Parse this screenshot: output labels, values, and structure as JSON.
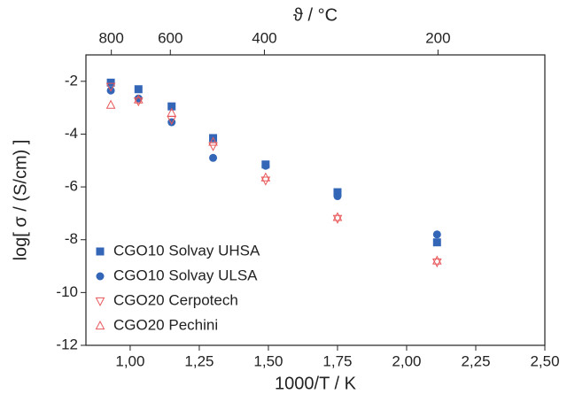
{
  "chart_data": {
    "type": "scatter",
    "xlabel": "1000/T / K",
    "ylabel": "log[ σ / (S/cm) ]",
    "x2label": "ϑ / °C",
    "x": [
      0.93,
      1.03,
      1.15,
      1.3,
      1.49,
      1.75,
      2.11
    ],
    "series": [
      {
        "name": "CGO10 Solvay UHSA",
        "color": "#3466b8",
        "marker": "square",
        "values": [
          -2.05,
          -2.3,
          -2.95,
          -4.15,
          -5.15,
          -6.2,
          -8.1
        ]
      },
      {
        "name": "CGO10 Solvay ULSA",
        "color": "#3466b8",
        "marker": "circle",
        "values": [
          -2.35,
          -2.65,
          -3.55,
          -4.9,
          -5.2,
          -6.35,
          -7.8
        ]
      },
      {
        "name": "CGO20 Cerpotech",
        "color": "#e8575a",
        "marker": "triangle-down",
        "values": [
          -2.2,
          -2.75,
          -3.45,
          -4.45,
          -5.75,
          -7.2,
          -8.85
        ]
      },
      {
        "name": "CGO20 Pechini",
        "color": "#e8575a",
        "marker": "triangle-up",
        "values": [
          -2.9,
          -2.7,
          -3.2,
          -4.3,
          -5.65,
          -7.15,
          -8.8
        ]
      }
    ],
    "xlim": [
      0.84,
      2.5
    ],
    "xticks": [
      {
        "value": 1.0,
        "label": "1,00"
      },
      {
        "value": 1.25,
        "label": "1,25"
      },
      {
        "value": 1.5,
        "label": "1,50"
      },
      {
        "value": 1.75,
        "label": "1,75"
      },
      {
        "value": 2.0,
        "label": "2,00"
      },
      {
        "value": 2.25,
        "label": "2,25"
      },
      {
        "value": 2.5,
        "label": "2,50"
      }
    ],
    "ylim": [
      -12,
      -1
    ],
    "yticks": [
      -12,
      -10,
      -8,
      -6,
      -4,
      -2
    ],
    "x2ticks": [
      800,
      600,
      400,
      200
    ],
    "legend": "lower-left"
  }
}
